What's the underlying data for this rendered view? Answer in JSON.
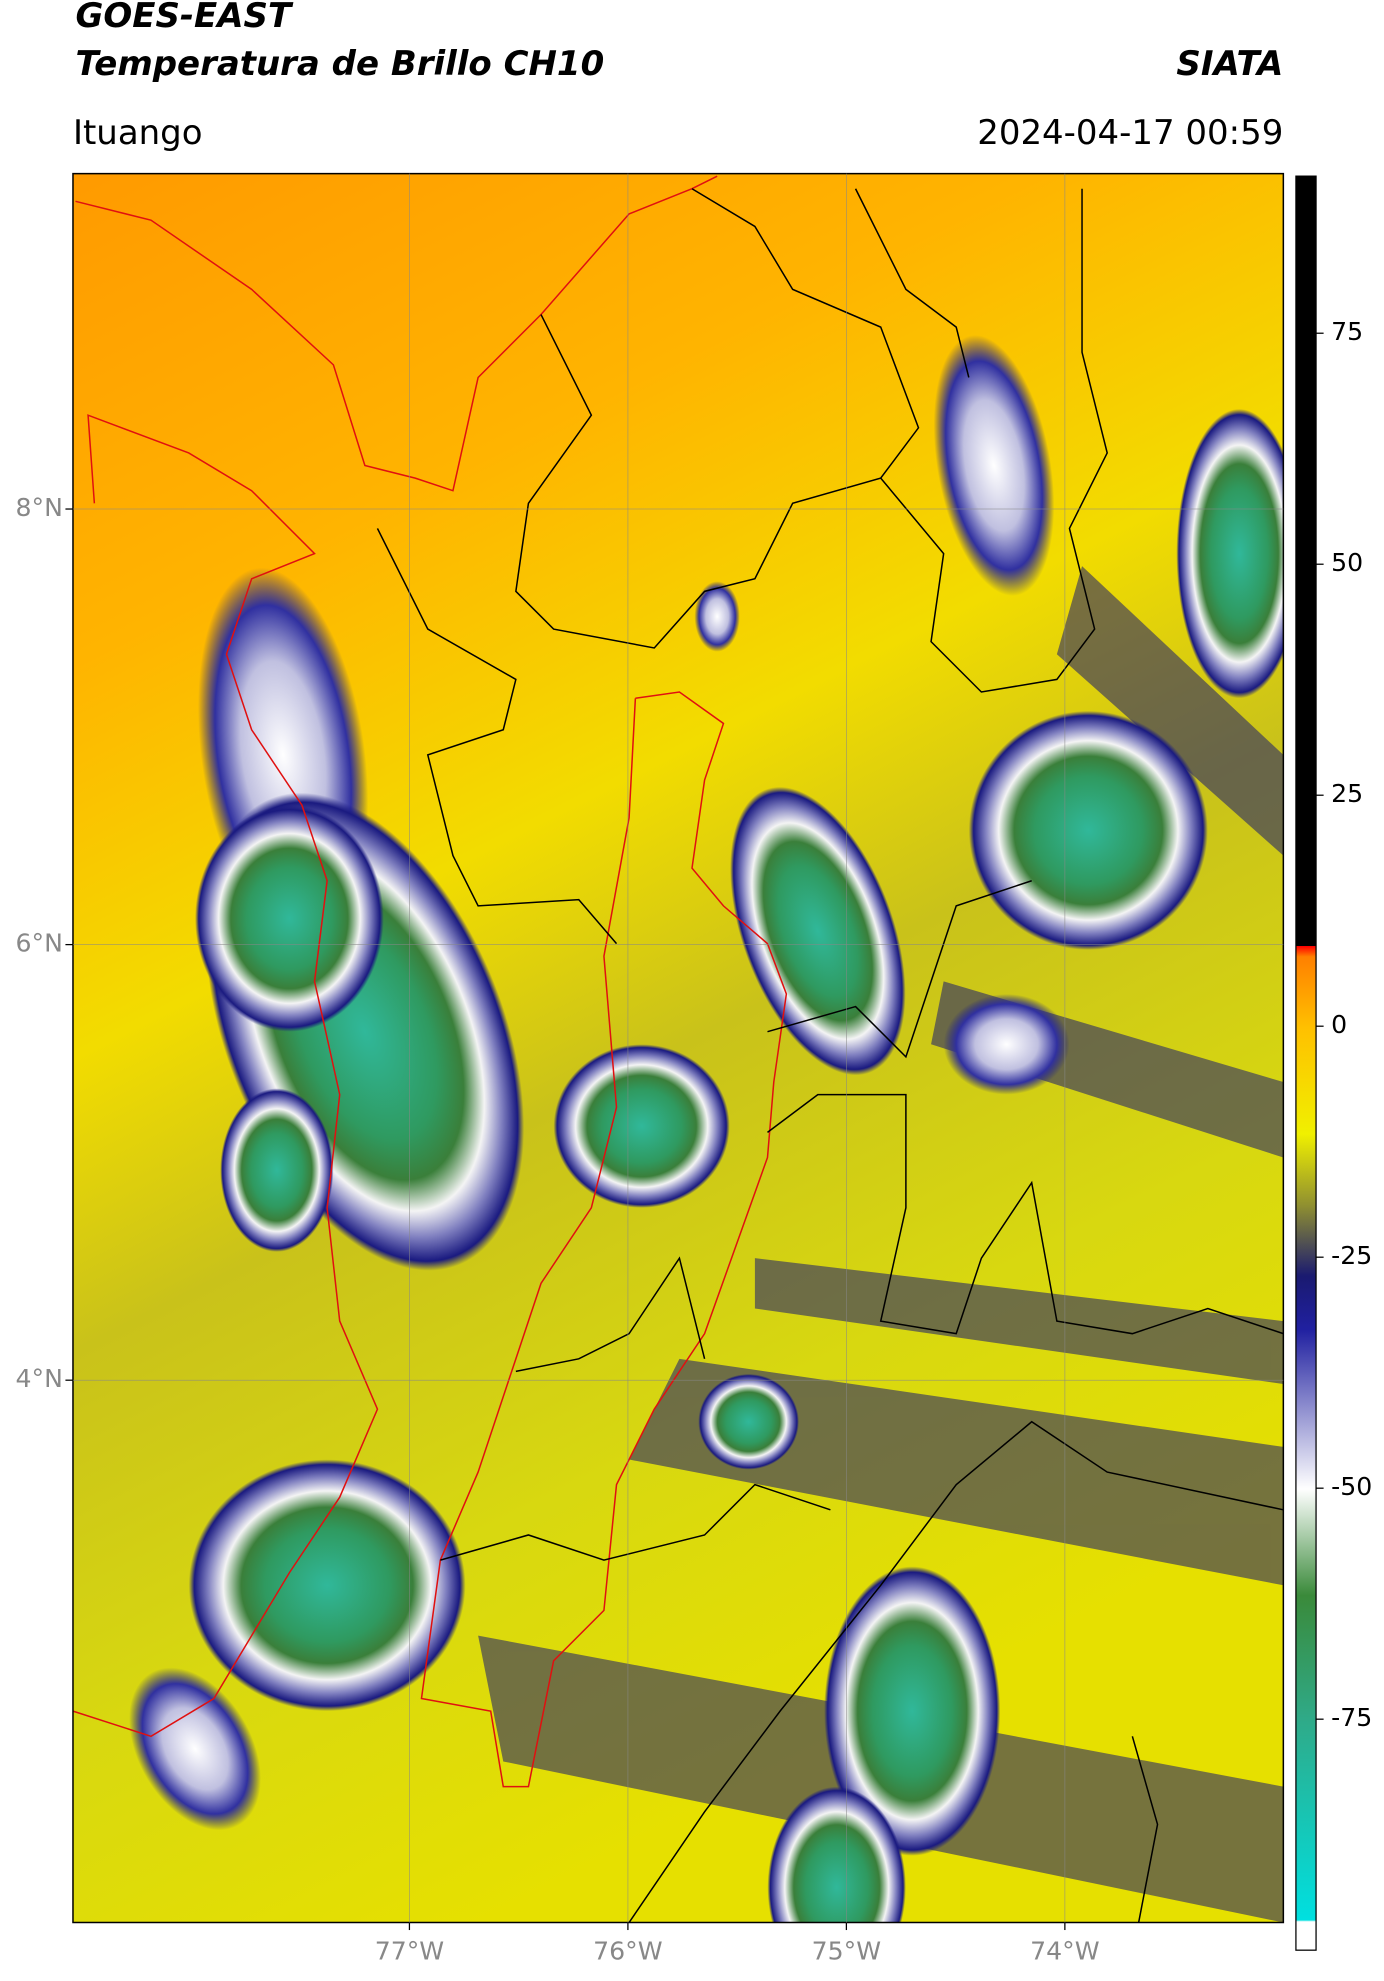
{
  "header": {
    "title": "GOES-EAST",
    "subtitle": "Temperatura de Brillo CH10",
    "agency": "SIATA",
    "location": "Ituango",
    "datetime": "2024-04-17 00:59"
  },
  "map": {
    "xlim": [
      -78.54,
      -73.0
    ],
    "ylim": [
      1.51,
      9.54
    ],
    "xticks": [
      {
        "value": -77,
        "label": "77°W"
      },
      {
        "value": -76,
        "label": "76°W"
      },
      {
        "value": -75,
        "label": "75°W"
      },
      {
        "value": -74,
        "label": "74°W"
      }
    ],
    "yticks": [
      {
        "value": 8,
        "label": "8°N"
      },
      {
        "value": 6,
        "label": "6°N"
      },
      {
        "value": 4,
        "label": "4°N"
      }
    ],
    "grid": true
  },
  "colorbar": {
    "lim": [
      -100,
      92
    ],
    "ticks": [
      75,
      50,
      25,
      0,
      -25,
      -50,
      -75
    ]
  }
}
